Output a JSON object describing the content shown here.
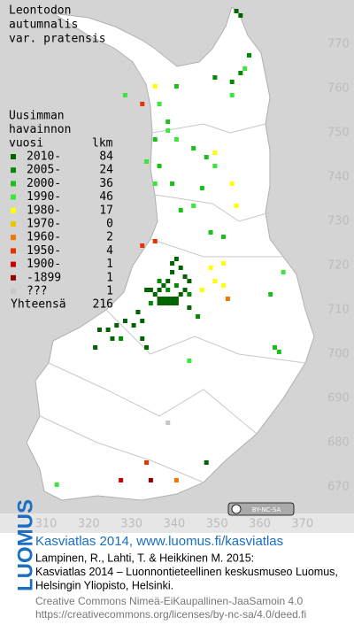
{
  "header": {
    "title_lines": [
      "Leontodon",
      "autumnalis",
      "var. pratensis"
    ]
  },
  "legend": {
    "heading_lines": [
      "Uusimman",
      "havainnon",
      "vuosi"
    ],
    "count_heading": "lkm",
    "rows": [
      {
        "label": "2010-",
        "count": 84,
        "color": "#006400",
        "squares": [
          [
            334,
            714
          ],
          [
            336,
            714
          ],
          [
            337,
            715
          ],
          [
            338,
            716
          ],
          [
            339,
            718
          ],
          [
            341,
            719
          ],
          [
            342,
            717
          ],
          [
            343,
            716
          ],
          [
            336,
            712
          ],
          [
            337,
            712
          ],
          [
            338,
            712
          ],
          [
            339,
            712
          ],
          [
            340,
            712
          ],
          [
            342,
            714
          ],
          [
            336,
            711
          ],
          [
            337,
            711
          ],
          [
            338,
            711
          ],
          [
            339,
            711
          ],
          [
            340,
            711
          ],
          [
            333,
            714
          ],
          [
            332,
            707
          ],
          [
            330,
            706
          ],
          [
            328,
            707
          ],
          [
            326,
            706
          ],
          [
            324,
            705
          ],
          [
            325,
            703
          ],
          [
            322,
            705
          ],
          [
            321,
            701
          ],
          [
            332,
            703
          ],
          [
            333,
            701
          ],
          [
            331,
            709
          ],
          [
            339,
            720
          ],
          [
            340,
            721
          ],
          [
            354,
            777
          ],
          [
            355,
            776
          ],
          [
            347,
            675
          ],
          [
            343,
            710
          ],
          [
            335,
            713
          ],
          [
            341,
            713
          ]
        ]
      },
      {
        "label": "2005-",
        "count": 24,
        "color": "#008c00",
        "squares": [
          [
            336,
            716
          ],
          [
            338,
            714
          ],
          [
            340,
            715
          ],
          [
            334,
            711
          ],
          [
            343,
            713
          ],
          [
            353,
            761
          ],
          [
            355,
            763
          ],
          [
            349,
            762
          ],
          [
            345,
            708
          ],
          [
            327,
            703
          ],
          [
            357,
            767
          ]
        ]
      },
      {
        "label": "2000-",
        "count": 36,
        "color": "#1cbf1c",
        "squares": [
          [
            335,
            748
          ],
          [
            336,
            742
          ],
          [
            339,
            738
          ],
          [
            341,
            732
          ],
          [
            348,
            727
          ],
          [
            351,
            726
          ],
          [
            346,
            737
          ],
          [
            347,
            744
          ],
          [
            362,
            713
          ],
          [
            363,
            701
          ],
          [
            364,
            700
          ],
          [
            344,
            746
          ],
          [
            340,
            760
          ],
          [
            338,
            752
          ]
        ]
      },
      {
        "label": "1990-",
        "count": 46,
        "color": "#3de63d",
        "squares": [
          [
            336,
            756
          ],
          [
            338,
            750
          ],
          [
            335,
            738
          ],
          [
            340,
            748
          ],
          [
            344,
            733
          ],
          [
            333,
            743
          ],
          [
            365,
            718
          ],
          [
            353,
            758
          ],
          [
            356,
            764
          ],
          [
            328,
            758
          ],
          [
            312,
            670
          ],
          [
            343,
            698
          ],
          [
            349,
            742
          ]
        ]
      },
      {
        "label": "1980-",
        "count": 17,
        "color": "#ffff00",
        "squares": [
          [
            335,
            760
          ],
          [
            349,
            745
          ],
          [
            353,
            738
          ],
          [
            348,
            719
          ],
          [
            349,
            716
          ],
          [
            351,
            720
          ],
          [
            354,
            733
          ],
          [
            346,
            714
          ],
          [
            351,
            715
          ]
        ]
      },
      {
        "label": "1970-",
        "count": 0,
        "color": "#e6c800",
        "squares": []
      },
      {
        "label": "1960-",
        "count": 2,
        "color": "#f07800",
        "squares": [
          [
            352,
            712
          ],
          [
            340,
            671
          ]
        ]
      },
      {
        "label": "1950-",
        "count": 4,
        "color": "#e63200",
        "squares": [
          [
            332,
            724
          ],
          [
            332,
            756
          ],
          [
            335,
            725
          ],
          [
            333,
            675
          ]
        ]
      },
      {
        "label": "1900-",
        "count": 1,
        "color": "#c80000",
        "squares": [
          [
            327,
            671
          ]
        ]
      },
      {
        "label": "-1899",
        "count": 1,
        "color": "#960000",
        "squares": [
          [
            334,
            671
          ]
        ]
      },
      {
        "label": "???",
        "count": 1,
        "color": "#c8c8c8",
        "squares": [
          [
            338,
            684
          ]
        ]
      }
    ],
    "total_label": "Yhteensä",
    "total": 216
  },
  "axis": {
    "xticks": [
      310,
      320,
      330,
      340,
      350,
      360,
      370
    ],
    "yticks": [
      670,
      680,
      690,
      700,
      710,
      720,
      730,
      740,
      750,
      760,
      770
    ]
  },
  "license_badge": "BY-NC-SA",
  "footer": {
    "logo": "LUOMUS",
    "site": "Kasviatlas 2014, www.luomus.fi/kasviatlas",
    "citation": [
      "Lampinen, R., Lahti, T. & Heikkinen M. 2015:",
      "Kasviatlas 2014 – Luonnontieteellinen keskusmuseo Luomus,",
      "Helsingin Yliopisto, Helsinki."
    ],
    "license": [
      "Creative Commons Nimeä-EiKaupallinen-JaaSamoin 4.0",
      "https://creativecommons.org/licenses/by-nc-sa/4.0/deed.fi"
    ]
  }
}
